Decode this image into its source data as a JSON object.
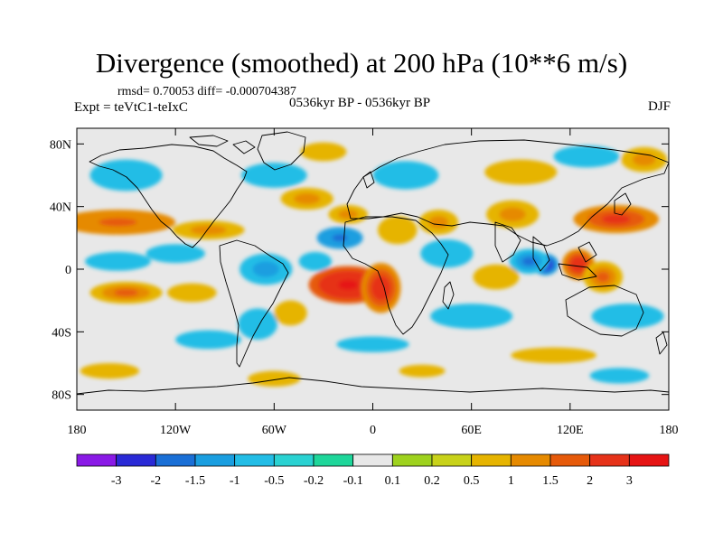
{
  "chart_data": {
    "type": "heatmap",
    "title": "Divergence (smoothed) at 200 hPa (10**6 m/s)",
    "stats": "rmsd= 0.70053 diff= -0.000704387",
    "experiment": "Expt = teVtC1-teIxC",
    "period": "0536kyr BP - 0536kyr BP",
    "season": "DJF",
    "x_range": [
      -180,
      180
    ],
    "y_range": [
      -90,
      90
    ],
    "x_ticks": [
      {
        "value": -180,
        "label": "180"
      },
      {
        "value": -120,
        "label": "120W"
      },
      {
        "value": -60,
        "label": "60W"
      },
      {
        "value": 0,
        "label": "0"
      },
      {
        "value": 60,
        "label": "60E"
      },
      {
        "value": 120,
        "label": "120E"
      },
      {
        "value": 180,
        "label": "180"
      }
    ],
    "y_ticks": [
      {
        "value": 80,
        "label": "80N"
      },
      {
        "value": 40,
        "label": "40N"
      },
      {
        "value": 0,
        "label": "0"
      },
      {
        "value": -40,
        "label": "40S"
      },
      {
        "value": -80,
        "label": "80S"
      }
    ],
    "colorbar": {
      "labels": [
        "-3",
        "-2",
        "-1.5",
        "-1",
        "-0.5",
        "-0.2",
        "-0.1",
        "0.1",
        "0.2",
        "0.5",
        "1",
        "1.5",
        "2",
        "3"
      ],
      "colors": [
        "#8a1ae6",
        "#2a2ad6",
        "#1a6fd6",
        "#1a9ee0",
        "#23bde6",
        "#2ad2d2",
        "#1ed69a",
        "#e8e8e8",
        "#9ed21e",
        "#c8d21a",
        "#e6b400",
        "#e68a00",
        "#e65a0a",
        "#e63219",
        "#e61414"
      ]
    },
    "features": [
      {
        "lon": -15,
        "lat": -10,
        "value": 3.2,
        "rx": 24,
        "ry": 12
      },
      {
        "lon": 5,
        "lat": -12,
        "value": 2.6,
        "rx": 12,
        "ry": 16
      },
      {
        "lon": -20,
        "lat": 20,
        "value": -1.8,
        "rx": 14,
        "ry": 7
      },
      {
        "lon": -65,
        "lat": 0,
        "value": -1.2,
        "rx": 16,
        "ry": 10
      },
      {
        "lon": -35,
        "lat": 5,
        "value": -1.0,
        "rx": 10,
        "ry": 6
      },
      {
        "lon": -155,
        "lat": 30,
        "value": 1.8,
        "rx": 35,
        "ry": 8
      },
      {
        "lon": -100,
        "lat": 25,
        "value": 1.2,
        "rx": 22,
        "ry": 6
      },
      {
        "lon": -40,
        "lat": 45,
        "value": 1.3,
        "rx": 16,
        "ry": 7
      },
      {
        "lon": -15,
        "lat": 35,
        "value": 1.0,
        "rx": 12,
        "ry": 6
      },
      {
        "lon": 40,
        "lat": 30,
        "value": 1.1,
        "rx": 12,
        "ry": 8
      },
      {
        "lon": 85,
        "lat": 35,
        "value": 1.4,
        "rx": 16,
        "ry": 9
      },
      {
        "lon": 148,
        "lat": 32,
        "value": 2.0,
        "rx": 26,
        "ry": 9
      },
      {
        "lon": 15,
        "lat": 25,
        "value": 0.6,
        "rx": 12,
        "ry": 9
      },
      {
        "lon": 105,
        "lat": 3,
        "value": -2.8,
        "rx": 8,
        "ry": 7
      },
      {
        "lon": 95,
        "lat": 5,
        "value": -1.6,
        "rx": 12,
        "ry": 8
      },
      {
        "lon": 125,
        "lat": 3,
        "value": 2.8,
        "rx": 10,
        "ry": 10
      },
      {
        "lon": 140,
        "lat": -5,
        "value": 1.7,
        "rx": 12,
        "ry": 10
      },
      {
        "lon": 75,
        "lat": -5,
        "value": 0.9,
        "rx": 14,
        "ry": 8
      },
      {
        "lon": 45,
        "lat": 10,
        "value": -0.8,
        "rx": 16,
        "ry": 9
      },
      {
        "lon": 60,
        "lat": -30,
        "value": -0.9,
        "rx": 25,
        "ry": 8
      },
      {
        "lon": 155,
        "lat": -30,
        "value": -1.0,
        "rx": 22,
        "ry": 8
      },
      {
        "lon": -150,
        "lat": -15,
        "value": 1.5,
        "rx": 22,
        "ry": 7
      },
      {
        "lon": -110,
        "lat": -15,
        "value": 0.8,
        "rx": 15,
        "ry": 6
      },
      {
        "lon": -155,
        "lat": 5,
        "value": -1.0,
        "rx": 20,
        "ry": 6
      },
      {
        "lon": -120,
        "lat": 10,
        "value": -0.8,
        "rx": 18,
        "ry": 6
      },
      {
        "lon": -70,
        "lat": -35,
        "value": -1.0,
        "rx": 12,
        "ry": 10
      },
      {
        "lon": -50,
        "lat": -28,
        "value": 0.8,
        "rx": 10,
        "ry": 8
      },
      {
        "lon": -60,
        "lat": 60,
        "value": -1.0,
        "rx": 20,
        "ry": 8
      },
      {
        "lon": -150,
        "lat": 60,
        "value": -0.9,
        "rx": 22,
        "ry": 10
      },
      {
        "lon": 20,
        "lat": 60,
        "value": -0.8,
        "rx": 20,
        "ry": 9
      },
      {
        "lon": 90,
        "lat": 62,
        "value": 0.9,
        "rx": 22,
        "ry": 8
      },
      {
        "lon": 130,
        "lat": 72,
        "value": -0.6,
        "rx": 20,
        "ry": 7
      },
      {
        "lon": -30,
        "lat": 75,
        "value": 0.7,
        "rx": 14,
        "ry": 6
      },
      {
        "lon": 165,
        "lat": 70,
        "value": 1.0,
        "rx": 14,
        "ry": 8
      },
      {
        "lon": -100,
        "lat": -45,
        "value": -0.7,
        "rx": 20,
        "ry": 6
      },
      {
        "lon": 0,
        "lat": -48,
        "value": -0.7,
        "rx": 22,
        "ry": 5
      },
      {
        "lon": 110,
        "lat": -55,
        "value": 0.6,
        "rx": 26,
        "ry": 5
      },
      {
        "lon": -160,
        "lat": -65,
        "value": 0.8,
        "rx": 18,
        "ry": 5
      },
      {
        "lon": -60,
        "lat": -70,
        "value": 0.7,
        "rx": 16,
        "ry": 5
      },
      {
        "lon": 150,
        "lat": -68,
        "value": -0.6,
        "rx": 18,
        "ry": 5
      },
      {
        "lon": 30,
        "lat": -65,
        "value": 0.6,
        "rx": 14,
        "ry": 4
      }
    ]
  }
}
